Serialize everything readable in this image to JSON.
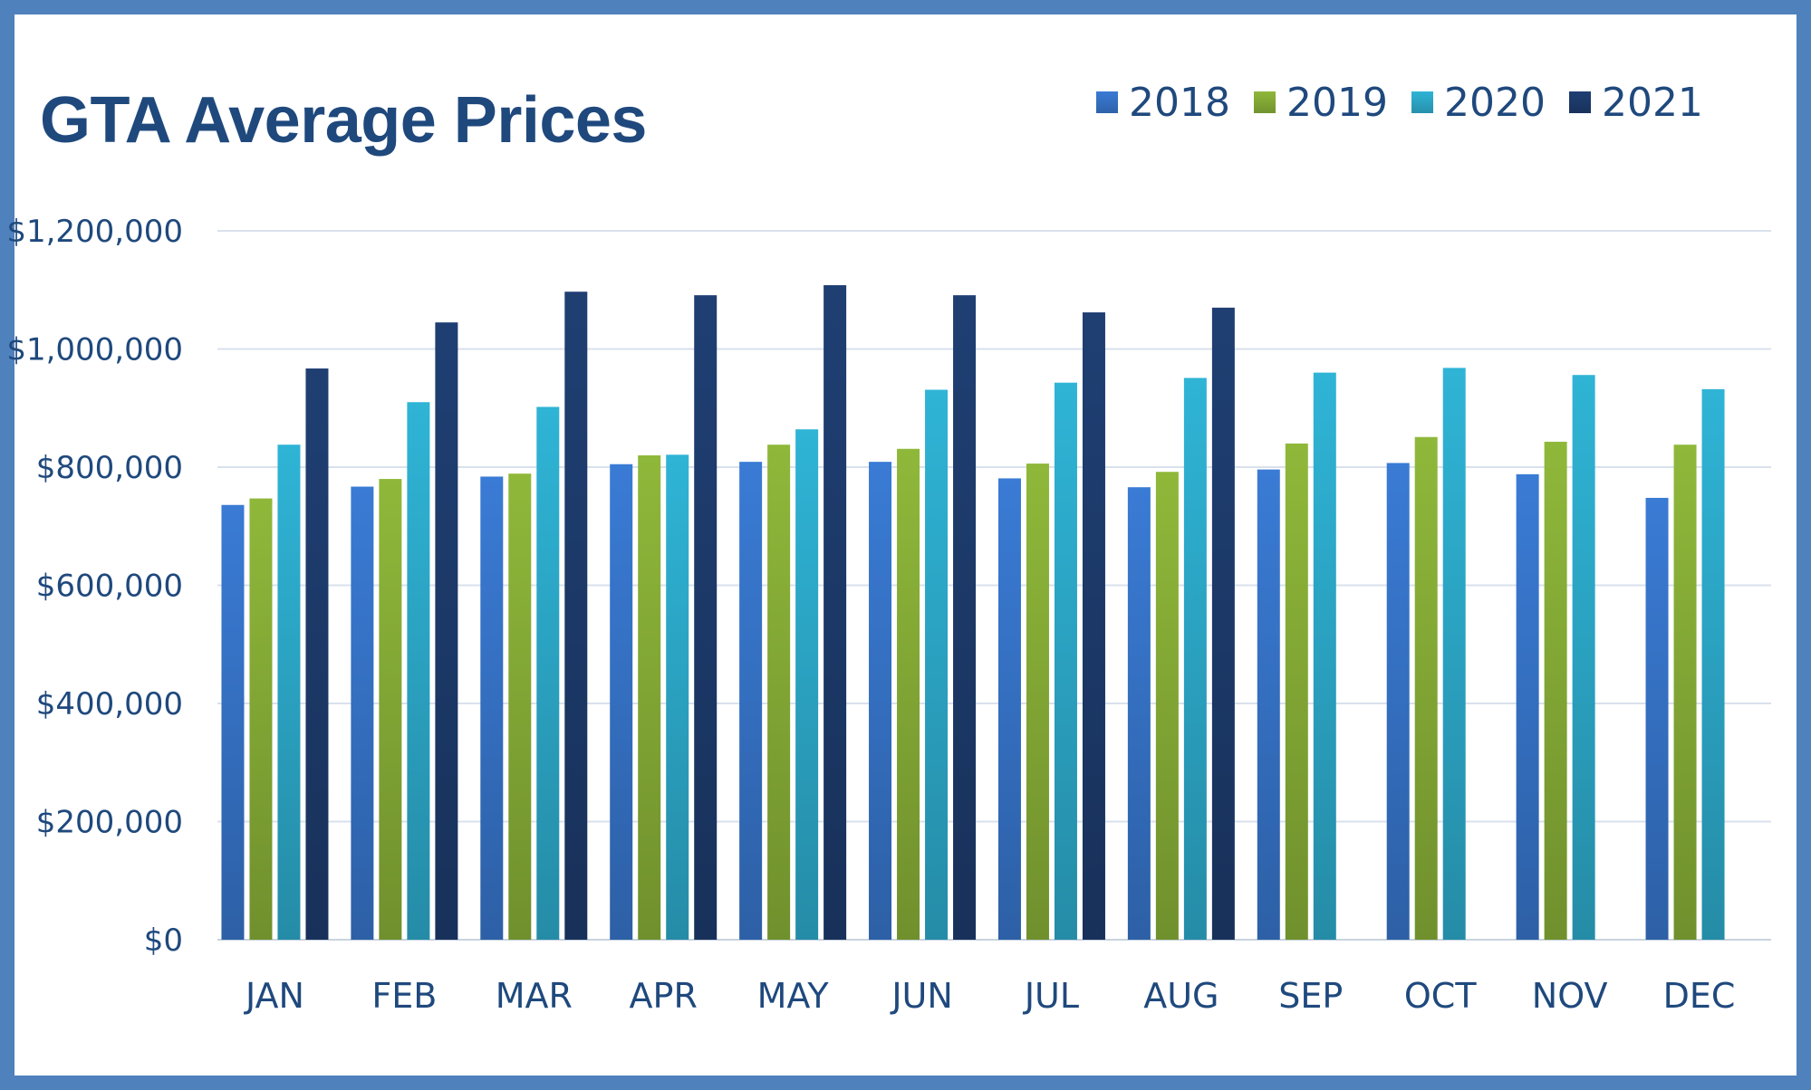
{
  "chart_data": {
    "type": "bar",
    "title": "GTA Average Prices",
    "xlabel": "",
    "ylabel": "",
    "ylim": [
      0,
      1200000
    ],
    "yticks": [
      0,
      200000,
      400000,
      600000,
      800000,
      1000000,
      1200000
    ],
    "ytick_labels": [
      "$0",
      "$200,000",
      "$400,000",
      "$600,000",
      "$800,000",
      "$1,000,000",
      "$1,200,000"
    ],
    "grid": true,
    "legend_position": "top-right",
    "categories": [
      "JAN",
      "FEB",
      "MAR",
      "APR",
      "MAY",
      "JUN",
      "JUL",
      "AUG",
      "SEP",
      "OCT",
      "NOV",
      "DEC"
    ],
    "series": [
      {
        "name": "2018",
        "color": "#3a7bd5",
        "values": [
          736000,
          767000,
          784000,
          805000,
          809000,
          809000,
          781000,
          766000,
          796000,
          807000,
          788000,
          748000
        ]
      },
      {
        "name": "2019",
        "color": "#8fb83a",
        "values": [
          747000,
          780000,
          789000,
          820000,
          838000,
          831000,
          806000,
          792000,
          840000,
          851000,
          843000,
          838000
        ]
      },
      {
        "name": "2020",
        "color": "#2fb4d6",
        "values": [
          838000,
          910000,
          902000,
          821000,
          864000,
          931000,
          943000,
          951000,
          960000,
          968000,
          956000,
          932000
        ]
      },
      {
        "name": "2021",
        "color": "#1f3f73",
        "values": [
          967000,
          1045000,
          1097000,
          1091000,
          1108000,
          1091000,
          1062000,
          1070000,
          null,
          null,
          null,
          null
        ]
      }
    ]
  }
}
